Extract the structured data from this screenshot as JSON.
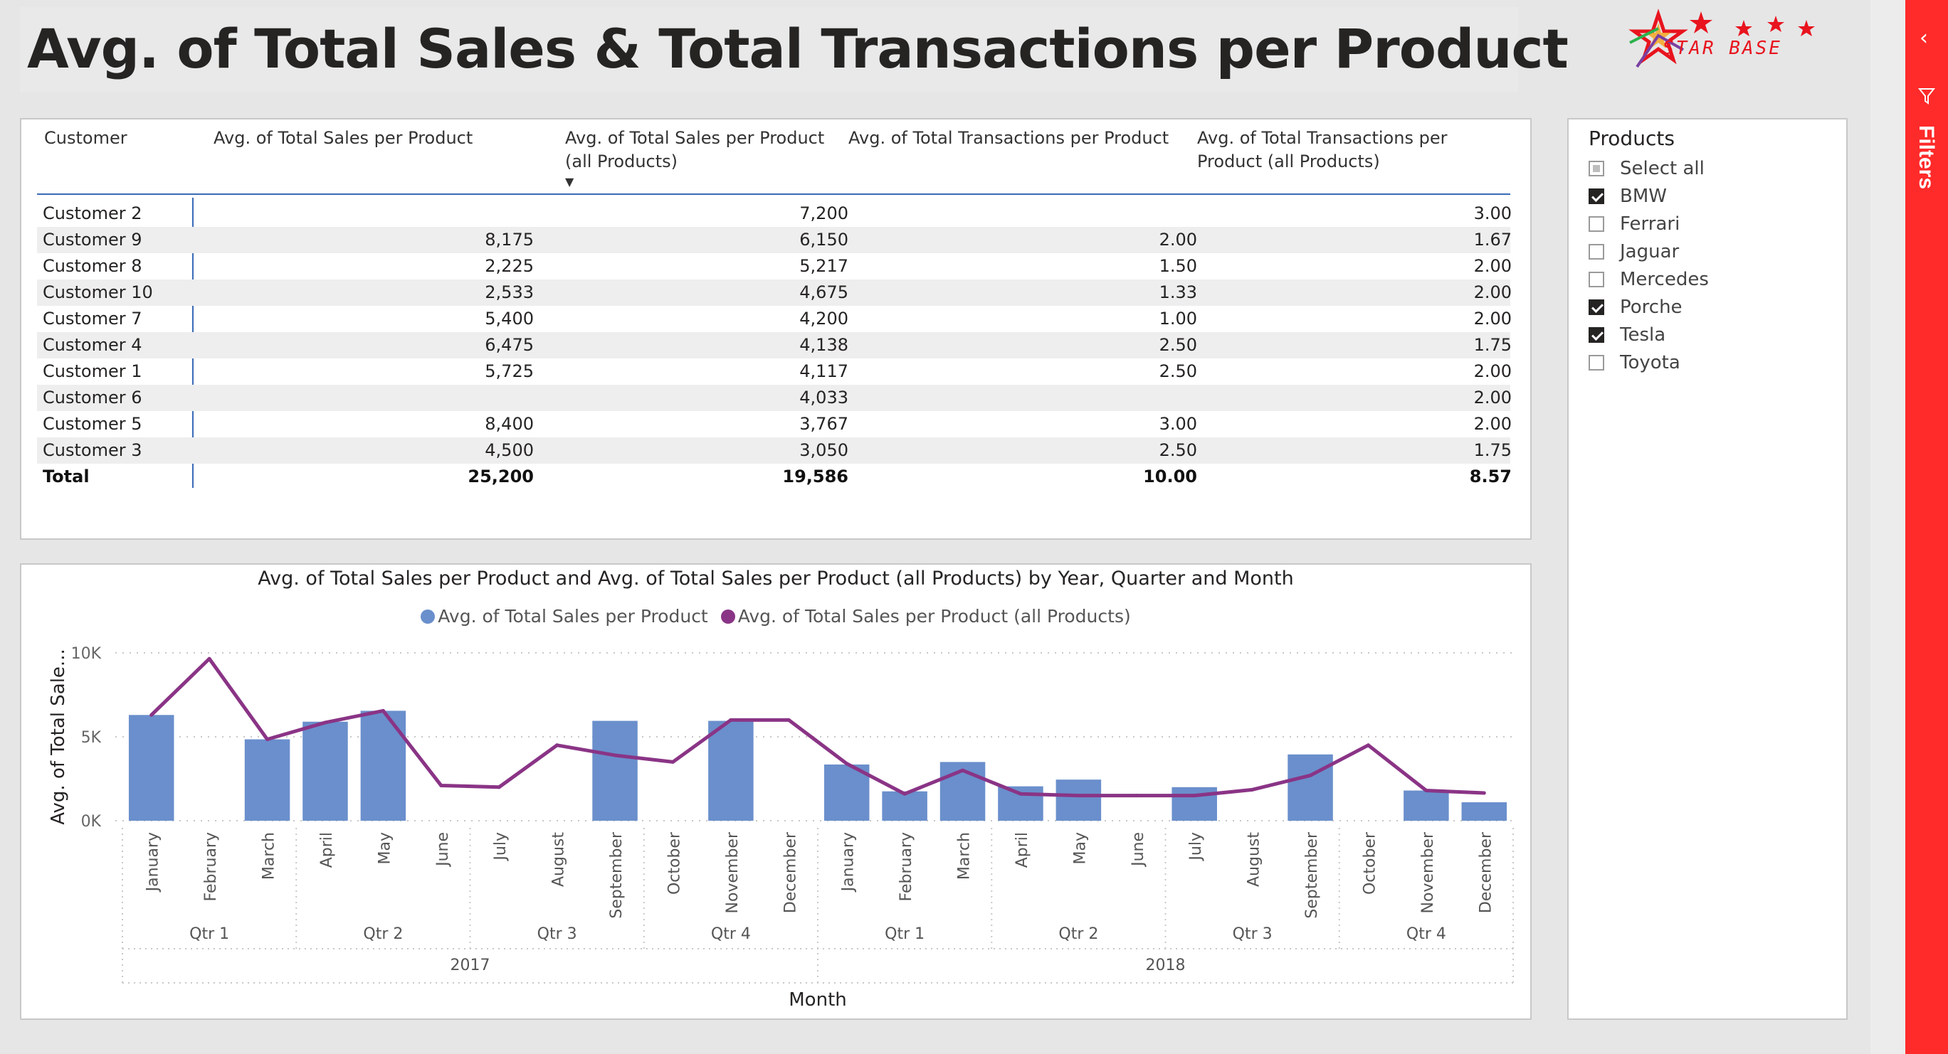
{
  "page": {
    "title": "Avg. of Total Sales & Total Transactions per Product"
  },
  "logo": {
    "text": "STAR BASE",
    "star_color": "#e8141e"
  },
  "filters_pane": {
    "label": "Filters",
    "accent": "#ff2a2a"
  },
  "table": {
    "headers": [
      "Customer",
      "Avg. of Total Sales per Product",
      "Avg. of Total Sales per Product (all Products)",
      "Avg. of Total Transactions per Product",
      "Avg. of Total Transactions per Product (all Products)"
    ],
    "rows": [
      [
        "Customer 2",
        "",
        "7,200",
        "",
        "3.00"
      ],
      [
        "Customer 9",
        "8,175",
        "6,150",
        "2.00",
        "1.67"
      ],
      [
        "Customer 8",
        "2,225",
        "5,217",
        "1.50",
        "2.00"
      ],
      [
        "Customer 10",
        "2,533",
        "4,675",
        "1.33",
        "2.00"
      ],
      [
        "Customer 7",
        "5,400",
        "4,200",
        "1.00",
        "2.00"
      ],
      [
        "Customer 4",
        "6,475",
        "4,138",
        "2.50",
        "1.75"
      ],
      [
        "Customer 1",
        "5,725",
        "4,117",
        "2.50",
        "2.00"
      ],
      [
        "Customer 6",
        "",
        "4,033",
        "",
        "2.00"
      ],
      [
        "Customer 5",
        "8,400",
        "3,767",
        "3.00",
        "2.00"
      ],
      [
        "Customer 3",
        "4,500",
        "3,050",
        "2.50",
        "1.75"
      ]
    ],
    "total": [
      "Total",
      "25,200",
      "19,586",
      "10.00",
      "8.57"
    ]
  },
  "chart_data": {
    "type": "bar",
    "title": "Avg. of Total Sales per Product and Avg. of Total Sales per Product (all Products) by Year, Quarter and Month",
    "xlabel": "Month",
    "ylabel": "Avg. of Total Sale...",
    "ylim": [
      0,
      10000
    ],
    "yticks": [
      "0K",
      "5K",
      "10K"
    ],
    "categories": [
      "January",
      "February",
      "March",
      "April",
      "May",
      "June",
      "July",
      "August",
      "September",
      "October",
      "November",
      "December",
      "January",
      "February",
      "March",
      "April",
      "May",
      "June",
      "July",
      "August",
      "September",
      "October",
      "November",
      "December"
    ],
    "quarters": [
      "Qtr 1",
      "Qtr 2",
      "Qtr 3",
      "Qtr 4",
      "Qtr 1",
      "Qtr 2",
      "Qtr 3",
      "Qtr 4"
    ],
    "years": [
      "2017",
      "2018"
    ],
    "series": [
      {
        "name": "Avg. of Total Sales per Product",
        "type": "bar",
        "color": "#6a8fcc",
        "values": [
          6300,
          null,
          4850,
          5900,
          6550,
          null,
          null,
          null,
          5950,
          null,
          5950,
          null,
          3350,
          1750,
          3500,
          2050,
          2450,
          null,
          2000,
          null,
          3950,
          null,
          1800,
          1100
        ]
      },
      {
        "name": "Avg. of Total Sales per Product (all Products)",
        "type": "line",
        "color": "#8a3486",
        "values": [
          6300,
          9650,
          4850,
          5850,
          6550,
          2100,
          2000,
          4500,
          3900,
          3500,
          6000,
          6000,
          3400,
          1600,
          3000,
          1600,
          1500,
          1500,
          1500,
          1850,
          2700,
          4500,
          1800,
          1650
        ]
      }
    ],
    "grid": true,
    "legend": "top"
  },
  "slicer": {
    "title": "Products",
    "items": [
      {
        "label": "Select all",
        "state": "partial"
      },
      {
        "label": "BMW",
        "state": "on"
      },
      {
        "label": "Ferrari",
        "state": "off"
      },
      {
        "label": "Jaguar",
        "state": "off"
      },
      {
        "label": "Mercedes",
        "state": "off"
      },
      {
        "label": "Porche",
        "state": "on"
      },
      {
        "label": "Tesla",
        "state": "on"
      },
      {
        "label": "Toyota",
        "state": "off"
      }
    ]
  }
}
